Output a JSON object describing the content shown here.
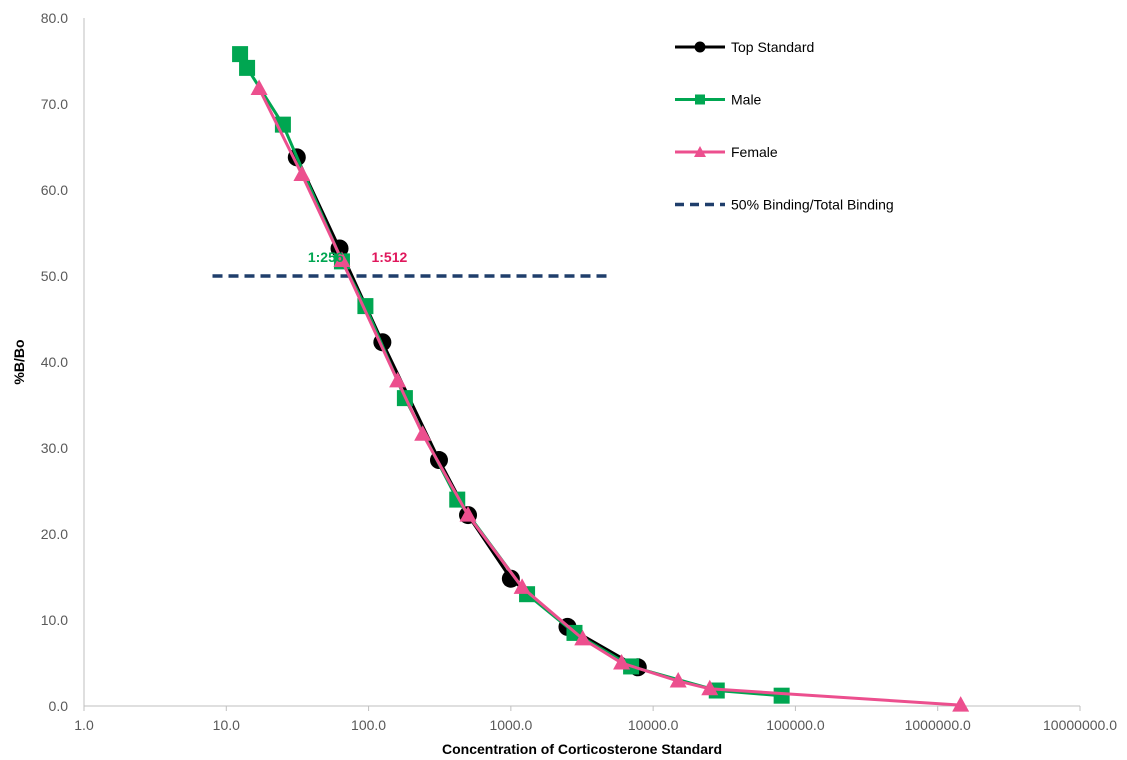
{
  "chart_data": {
    "type": "line",
    "title": "",
    "xlabel": "Concentration of Corticosterone Standard",
    "ylabel": "%B/Bo",
    "x_scale": "log",
    "xlim": [
      1,
      10000000
    ],
    "ylim": [
      0,
      80
    ],
    "x_ticks": [
      1,
      10,
      100,
      1000,
      10000,
      100000,
      1000000,
      10000000
    ],
    "x_tick_labels": [
      "1.0",
      "10.0",
      "100.0",
      "1000.0",
      "10000.0",
      "100000.0",
      "1000000.0",
      "10000000.0"
    ],
    "y_ticks": [
      0,
      10,
      20,
      30,
      40,
      50,
      60,
      70,
      80
    ],
    "y_tick_labels": [
      "0.0",
      "10.0",
      "20.0",
      "30.0",
      "40.0",
      "50.0",
      "60.0",
      "70.0",
      "80.0"
    ],
    "grid": false,
    "legend_position": "top-right",
    "series": [
      {
        "name": "Top Standard",
        "color": "#000000",
        "marker": "circle",
        "line_style": "solid",
        "x": [
          31.3,
          62.5,
          125,
          312.5,
          500,
          1000,
          2500,
          7800
        ],
        "y": [
          63.8,
          53.2,
          42.3,
          28.6,
          22.2,
          14.8,
          9.2,
          4.5
        ]
      },
      {
        "name": "Male",
        "color": "#00a651",
        "marker": "square",
        "line_style": "solid",
        "x": [
          12.5,
          14,
          25,
          65,
          95,
          180,
          420,
          1300,
          2800,
          7000,
          28000,
          80000
        ],
        "y": [
          75.8,
          74.2,
          67.6,
          51.7,
          46.5,
          35.8,
          24.0,
          13.0,
          8.5,
          4.6,
          1.8,
          1.2
        ]
      },
      {
        "name": "Female",
        "color": "#ec4f8e",
        "marker": "triangle",
        "line_style": "solid",
        "x": [
          17,
          34,
          65,
          160,
          240,
          500,
          1200,
          3200,
          6000,
          15000,
          25000,
          1450000
        ],
        "y": [
          71.8,
          61.8,
          51.8,
          37.8,
          31.6,
          22.2,
          13.8,
          7.8,
          5.0,
          2.9,
          2.0,
          0.1
        ]
      },
      {
        "name": "50% Binding/Total Binding",
        "color": "#1f3e6b",
        "marker": "none",
        "line_style": "dashed",
        "x": [
          8,
          5000
        ],
        "y": [
          50,
          50
        ]
      }
    ],
    "annotations": [
      {
        "text": "1:256",
        "color": "#00a651",
        "x": 50,
        "y": 51.6
      },
      {
        "text": "1:512",
        "color": "#e0175c",
        "x": 140,
        "y": 51.6
      }
    ]
  }
}
